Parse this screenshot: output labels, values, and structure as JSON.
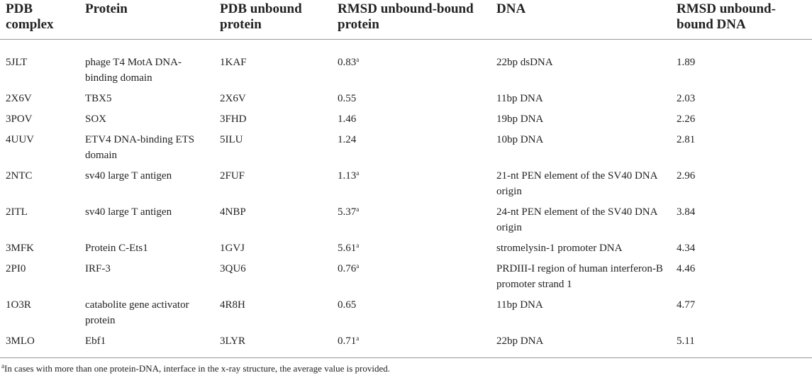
{
  "table": {
    "header": [
      "PDB complex",
      "Protein",
      "PDB unbound protein",
      "RMSD unbound-bound protein",
      "DNA",
      "RMSD unbound-bound DNA"
    ],
    "rows": [
      [
        "5JLT",
        "phage T4 MotA DNA-binding domain",
        "1KAF",
        {
          "value": "0.83",
          "note": "a"
        },
        "22bp dsDNA",
        "1.89"
      ],
      [
        "2X6V",
        "TBX5",
        "2X6V",
        {
          "value": "0.55"
        },
        "11bp DNA",
        "2.03"
      ],
      [
        "3POV",
        "SOX",
        "3FHD",
        {
          "value": "1.46"
        },
        "19bp DNA",
        "2.26"
      ],
      [
        "4UUV",
        "ETV4 DNA-binding ETS domain",
        "5ILU",
        {
          "value": "1.24"
        },
        "10bp DNA",
        "2.81"
      ],
      [
        "2NTC",
        "sv40 large T antigen",
        "2FUF",
        {
          "value": "1.13",
          "note": "a"
        },
        "21-nt PEN element of the SV40 DNA origin",
        "2.96"
      ],
      [
        "2ITL",
        "sv40 large T antigen",
        "4NBP",
        {
          "value": "5.37",
          "note": "a"
        },
        "24-nt PEN element of the SV40 DNA origin",
        "3.84"
      ],
      [
        "3MFK",
        "Protein C-Ets1",
        "1GVJ",
        {
          "value": "5.61",
          "note": "a"
        },
        "stromelysin-1 promoter DNA",
        "4.34"
      ],
      [
        "2PI0",
        "IRF-3",
        "3QU6",
        {
          "value": "0.76",
          "note": "a"
        },
        "PRDIII-I region of human interferon-B promoter strand 1",
        "4.46"
      ],
      [
        "1O3R",
        "catabolite gene activator protein",
        "4R8H",
        {
          "value": "0.65"
        },
        "11bp DNA",
        "4.77"
      ],
      [
        "3MLO",
        "Ebf1",
        "3LYR",
        {
          "value": "0.71",
          "note": "a"
        },
        "22bp DNA",
        "5.11"
      ]
    ],
    "footnote": {
      "mark": "a",
      "text": "In cases with more than one protein-DNA, interface in the x-ray structure, the average value is provided."
    }
  }
}
